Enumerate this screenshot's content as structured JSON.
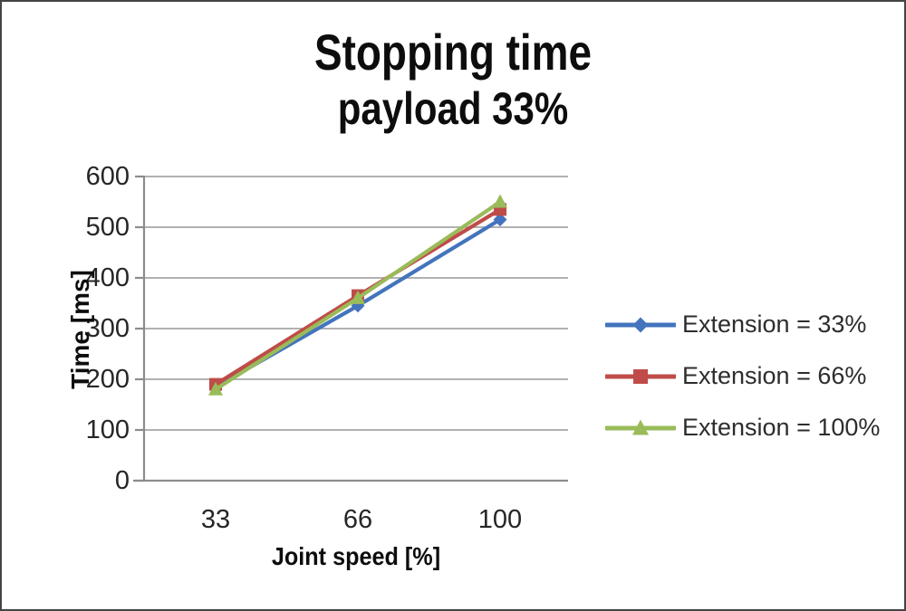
{
  "chart_data": {
    "type": "line",
    "title": "Stopping time",
    "subtitle": "payload 33%",
    "xlabel": "Joint speed [%]",
    "ylabel": "Time [ms]",
    "categories": [
      "33",
      "66",
      "100"
    ],
    "y_ticks": [
      "0",
      "100",
      "200",
      "300",
      "400",
      "500",
      "600"
    ],
    "ylim": [
      0,
      600
    ],
    "grid": true,
    "legend_position": "right",
    "axis_color": "#8c8c8c",
    "grid_color": "#a6a6a6",
    "series": [
      {
        "name": "Extension = 33%",
        "marker": "diamond",
        "color": "#4374bd",
        "values": [
          185,
          345,
          515
        ]
      },
      {
        "name": "Extension = 66%",
        "marker": "square",
        "color": "#bf4c48",
        "values": [
          190,
          365,
          535
        ]
      },
      {
        "name": "Extension = 100%",
        "marker": "triangle",
        "color": "#9abb59",
        "values": [
          180,
          360,
          550
        ]
      }
    ]
  }
}
